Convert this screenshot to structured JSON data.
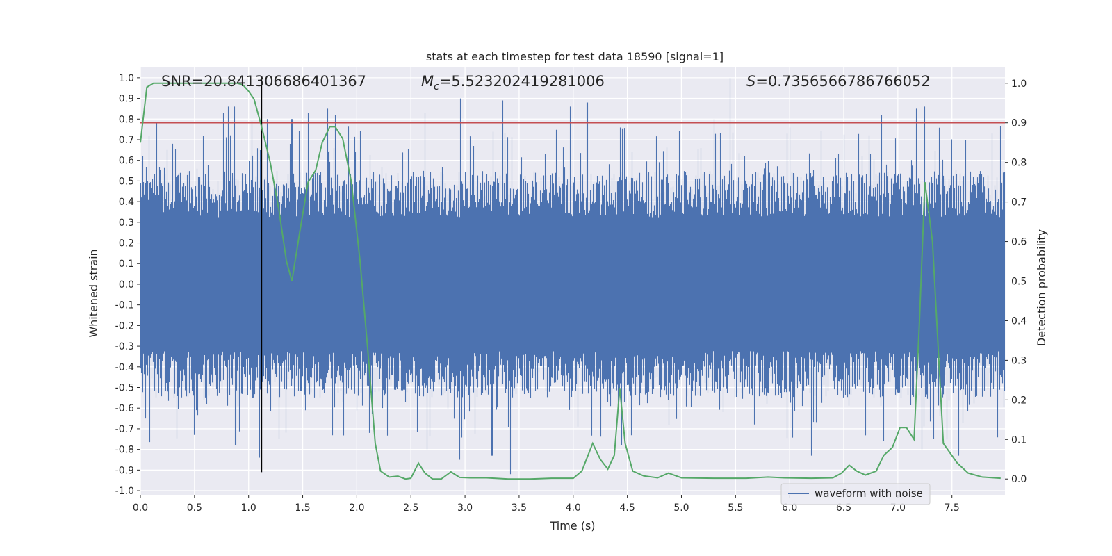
{
  "chart_data": {
    "type": "line",
    "title": "stats at each timestep for test data 18590 [signal=1]",
    "xlabel": "Time (s)",
    "ylabel": "Whitened strain",
    "y2label": "Detection probability",
    "xlim": [
      0,
      7.99
    ],
    "ylim": [
      -1.02,
      1.05
    ],
    "y2lim": [
      -0.04,
      1.04
    ],
    "xticks": [
      "0.0",
      "0.5",
      "1.0",
      "1.5",
      "2.0",
      "2.5",
      "3.0",
      "3.5",
      "4.0",
      "4.5",
      "5.0",
      "5.5",
      "6.0",
      "6.5",
      "7.0",
      "7.5"
    ],
    "yticks": [
      "1.0",
      "0.9",
      "0.8",
      "0.7",
      "0.6",
      "0.5",
      "0.4",
      "0.3",
      "0.2",
      "0.1",
      "0.0",
      "-0.1",
      "-0.2",
      "-0.3",
      "-0.4",
      "-0.5",
      "-0.6",
      "-0.7",
      "-0.8",
      "-0.9",
      "-1.0"
    ],
    "y2ticks": [
      "1.0",
      "0.9",
      "0.8",
      "0.7",
      "0.6",
      "0.5",
      "0.4",
      "0.3",
      "0.2",
      "0.1",
      "0.0"
    ],
    "annotations": {
      "snr": "SNR=20.841306686401367",
      "mc_symbol": "M",
      "mc_sub": "c",
      "mc_value": "=5.523202419281006",
      "s_symbol": "S",
      "s_value": "=0.7356566786766052"
    },
    "threshold": 0.9,
    "merger_time": 1.12,
    "legend": {
      "label": "waveform with noise",
      "location": "lower right"
    },
    "series": [
      {
        "name": "waveform with noise",
        "color": "#4c72b0",
        "kind": "noise",
        "typical_amplitude": 0.45,
        "peaks": [
          {
            "t": 0.02,
            "v": 0.62
          },
          {
            "t": 0.05,
            "v": -0.65
          },
          {
            "t": 0.08,
            "v": 0.72
          },
          {
            "t": 0.15,
            "v": 0.78
          },
          {
            "t": 0.25,
            "v": 0.65
          },
          {
            "t": 0.3,
            "v": 0.68
          },
          {
            "t": 0.5,
            "v": -0.73
          },
          {
            "t": 0.58,
            "v": 0.72
          },
          {
            "t": 0.77,
            "v": 0.83
          },
          {
            "t": 0.81,
            "v": 0.86
          },
          {
            "t": 0.87,
            "v": 0.86
          },
          {
            "t": 0.88,
            "v": -0.78
          },
          {
            "t": 1.03,
            "v": 0.79
          },
          {
            "t": 1.1,
            "v": -0.84
          },
          {
            "t": 1.17,
            "v": 0.8
          },
          {
            "t": 1.28,
            "v": -0.75
          },
          {
            "t": 1.4,
            "v": 0.8
          },
          {
            "t": 1.55,
            "v": 0.83
          },
          {
            "t": 1.73,
            "v": 0.85
          },
          {
            "t": 1.8,
            "v": 0.82
          },
          {
            "t": 2.63,
            "v": 0.83
          },
          {
            "t": 2.65,
            "v": -0.8
          },
          {
            "t": 2.96,
            "v": 0.9
          },
          {
            "t": 2.95,
            "v": -0.85
          },
          {
            "t": 3.25,
            "v": -0.83
          },
          {
            "t": 3.35,
            "v": 0.89
          },
          {
            "t": 3.42,
            "v": -0.92
          },
          {
            "t": 3.97,
            "v": 0.86
          },
          {
            "t": 4.13,
            "v": 0.88
          },
          {
            "t": 4.45,
            "v": -0.78
          },
          {
            "t": 5.45,
            "v": 1.0
          },
          {
            "t": 5.3,
            "v": 0.8
          },
          {
            "t": 6.2,
            "v": -0.83
          },
          {
            "t": 6.85,
            "v": 0.82
          },
          {
            "t": 7.17,
            "v": 0.85
          },
          {
            "t": 7.25,
            "v": 0.86
          },
          {
            "t": 7.22,
            "v": -0.8
          },
          {
            "t": 7.33,
            "v": -0.75
          },
          {
            "t": 7.56,
            "v": -0.83
          },
          {
            "t": 7.87,
            "v": 0.73
          }
        ]
      },
      {
        "name": "detection probability",
        "color": "#55a868",
        "axis": "right",
        "x": [
          0.0,
          0.06,
          0.12,
          0.25,
          0.5,
          0.75,
          0.9,
          0.95,
          1.0,
          1.05,
          1.08,
          1.12,
          1.2,
          1.28,
          1.35,
          1.4,
          1.47,
          1.55,
          1.62,
          1.68,
          1.75,
          1.8,
          1.87,
          1.95,
          2.03,
          2.1,
          2.17,
          2.22,
          2.3,
          2.38,
          2.45,
          2.5,
          2.57,
          2.63,
          2.7,
          2.78,
          2.87,
          2.95,
          3.05,
          3.2,
          3.4,
          3.6,
          3.8,
          4.0,
          4.08,
          4.18,
          4.25,
          4.32,
          4.38,
          4.43,
          4.48,
          4.55,
          4.65,
          4.78,
          4.88,
          5.0,
          5.3,
          5.6,
          5.8,
          5.95,
          6.2,
          6.4,
          6.48,
          6.55,
          6.62,
          6.7,
          6.8,
          6.87,
          6.95,
          7.02,
          7.08,
          7.15,
          7.2,
          7.25,
          7.32,
          7.42,
          7.55,
          7.65,
          7.78,
          7.95
        ],
        "values": [
          0.85,
          0.99,
          1.0,
          1.0,
          1.0,
          1.0,
          1.0,
          0.995,
          0.98,
          0.96,
          0.93,
          0.89,
          0.8,
          0.68,
          0.55,
          0.5,
          0.62,
          0.75,
          0.78,
          0.85,
          0.89,
          0.89,
          0.86,
          0.75,
          0.55,
          0.33,
          0.09,
          0.02,
          0.005,
          0.007,
          0.0,
          0.002,
          0.04,
          0.015,
          0.0,
          0.0,
          0.018,
          0.004,
          0.003,
          0.003,
          0.0,
          0.0,
          0.002,
          0.002,
          0.02,
          0.09,
          0.05,
          0.025,
          0.06,
          0.23,
          0.09,
          0.02,
          0.008,
          0.003,
          0.015,
          0.003,
          0.002,
          0.002,
          0.005,
          0.003,
          0.002,
          0.003,
          0.015,
          0.035,
          0.02,
          0.01,
          0.02,
          0.06,
          0.08,
          0.13,
          0.13,
          0.1,
          0.4,
          0.75,
          0.6,
          0.09,
          0.04,
          0.015,
          0.005,
          0.002
        ]
      }
    ]
  }
}
